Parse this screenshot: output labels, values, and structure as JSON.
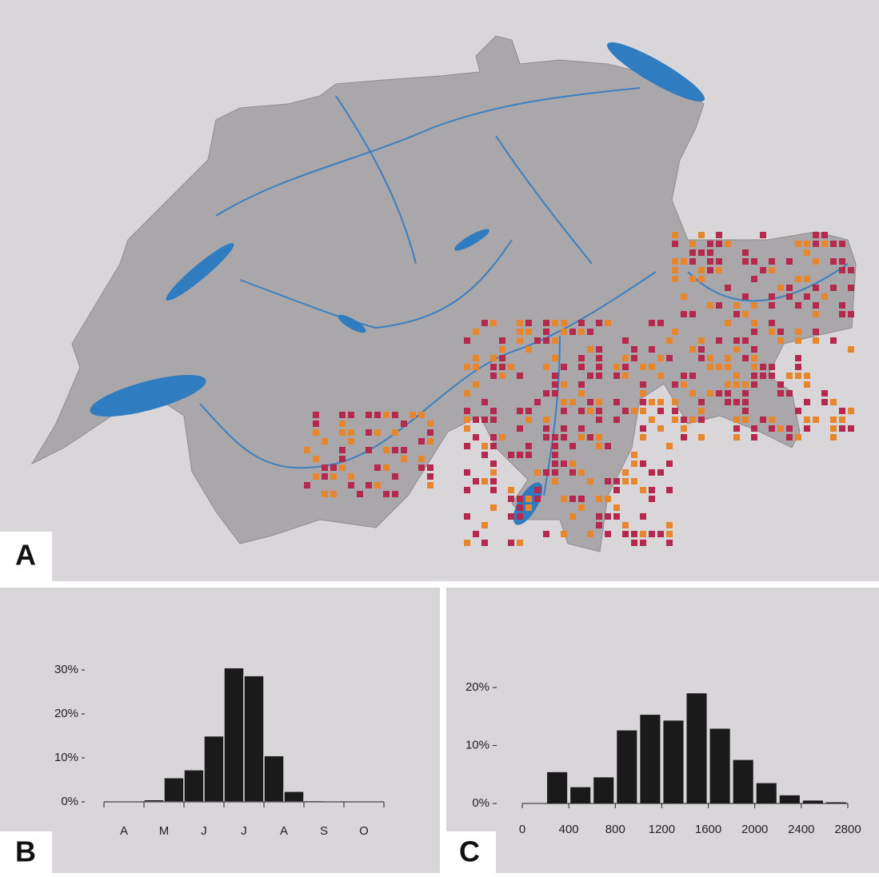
{
  "map": {
    "label": "A"
  },
  "chart_data": [
    {
      "type": "bar",
      "label": "B",
      "months": [
        "A",
        "M",
        "J",
        "J",
        "A",
        "S",
        "O"
      ],
      "values": [
        0,
        0,
        0.5,
        5.5,
        7.3,
        15,
        30.5,
        28.7,
        10.5,
        2.4,
        0.3,
        0.1,
        0,
        0
      ],
      "color": "#1a1a1a",
      "ylim": [
        0,
        32
      ],
      "yticks": [
        {
          "value": 0,
          "label": "0%"
        },
        {
          "value": 10,
          "label": "10%"
        },
        {
          "value": 20,
          "label": "20%"
        },
        {
          "value": 30,
          "label": "30%"
        }
      ]
    },
    {
      "type": "histogram",
      "label": "C",
      "bins": [
        200,
        400,
        600,
        800,
        1000,
        1200,
        1400,
        1600,
        1800,
        2000,
        2200,
        2400,
        2600,
        2800
      ],
      "values": [
        5.4,
        2.8,
        4.5,
        12.6,
        15.3,
        14.3,
        19,
        12.9,
        7.5,
        3.5,
        1.4,
        0.5,
        0.2
      ],
      "color": "#1a1a1a",
      "xlim": [
        0,
        2800
      ],
      "xticks": [
        0,
        400,
        800,
        1200,
        1600,
        2000,
        2400,
        2800
      ],
      "ylim": [
        0,
        20
      ],
      "yticks": [
        {
          "value": 0,
          "label": "0%"
        },
        {
          "value": 10,
          "label": "10%"
        },
        {
          "value": 20,
          "label": "20%"
        }
      ]
    }
  ]
}
